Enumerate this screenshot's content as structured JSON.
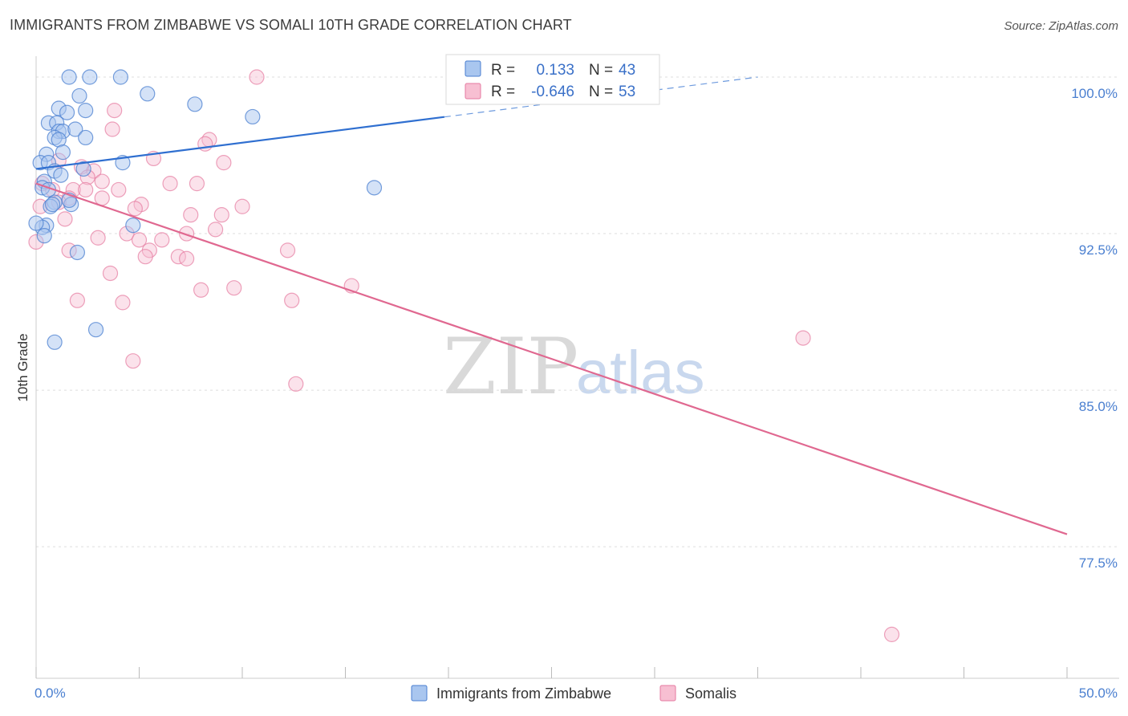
{
  "title": "IMMIGRANTS FROM ZIMBABWE VS SOMALI 10TH GRADE CORRELATION CHART",
  "source": "Source: ZipAtlas.com",
  "watermark": {
    "zip": "ZIP",
    "atlas": "atlas"
  },
  "colors": {
    "zimbabwe_fill": "#a9c6ef",
    "zimbabwe_stroke": "#4a7fd0",
    "zimbabwe_line": "#2f6fd0",
    "somali_fill": "#f7bfd2",
    "somali_stroke": "#e57aa0",
    "somali_line": "#e06890",
    "axis_label": "#4a7fd0"
  },
  "legend": {
    "r_label": "R =",
    "n_label": "N =",
    "zimbabwe": {
      "r": "0.133",
      "n": "43"
    },
    "somali": {
      "r": "-0.646",
      "n": "53"
    }
  },
  "chart_data": {
    "type": "scatter",
    "title": "IMMIGRANTS FROM ZIMBABWE VS SOMALI 10TH GRADE CORRELATION CHART",
    "xlabel": "",
    "ylabel": "10th Grade",
    "xlim": [
      0,
      50
    ],
    "ylim": [
      71.2,
      101.0
    ],
    "x_tick_labels": [
      "0.0%",
      "50.0%"
    ],
    "y_ticks": [
      100.0,
      92.5,
      85.0,
      77.5
    ],
    "y_tick_labels": [
      "100.0%",
      "92.5%",
      "85.0%",
      "77.5%"
    ],
    "grid": true,
    "legend_placement": "bottom-center",
    "series": [
      {
        "name": "Immigrants from Zimbabwe",
        "r": 0.133,
        "n": 43,
        "trend": {
          "x0": 0.0,
          "y0": 95.6,
          "x1": 35.0,
          "y1": 100.0,
          "solid_until": 19.8
        },
        "points": [
          [
            1.6,
            100.0
          ],
          [
            2.6,
            100.0
          ],
          [
            4.1,
            100.0
          ],
          [
            2.1,
            99.1
          ],
          [
            5.4,
            99.2
          ],
          [
            7.7,
            98.7
          ],
          [
            1.1,
            98.5
          ],
          [
            1.5,
            98.3
          ],
          [
            2.4,
            98.4
          ],
          [
            10.5,
            98.1
          ],
          [
            0.6,
            97.8
          ],
          [
            1.0,
            97.8
          ],
          [
            1.1,
            97.4
          ],
          [
            1.3,
            97.4
          ],
          [
            1.9,
            97.5
          ],
          [
            0.9,
            97.1
          ],
          [
            1.1,
            97.0
          ],
          [
            2.4,
            97.1
          ],
          [
            0.5,
            96.3
          ],
          [
            1.3,
            96.4
          ],
          [
            4.2,
            95.9
          ],
          [
            0.2,
            95.9
          ],
          [
            0.6,
            95.9
          ],
          [
            0.9,
            95.5
          ],
          [
            2.3,
            95.6
          ],
          [
            1.2,
            95.3
          ],
          [
            0.4,
            95.0
          ],
          [
            0.3,
            94.7
          ],
          [
            0.6,
            94.6
          ],
          [
            16.4,
            94.7
          ],
          [
            0.9,
            94.0
          ],
          [
            1.7,
            93.9
          ],
          [
            0.7,
            93.8
          ],
          [
            0.8,
            93.9
          ],
          [
            1.6,
            94.1
          ],
          [
            0.5,
            92.9
          ],
          [
            0.3,
            92.8
          ],
          [
            4.7,
            92.9
          ],
          [
            0.4,
            92.4
          ],
          [
            2.0,
            91.6
          ],
          [
            2.9,
            87.9
          ],
          [
            0.9,
            87.3
          ],
          [
            0.0,
            93.0
          ]
        ]
      },
      {
        "name": "Somalis",
        "r": -0.646,
        "n": 53,
        "trend": {
          "x0": 0.0,
          "y0": 94.9,
          "x1": 50.0,
          "y1": 78.1
        },
        "points": [
          [
            10.7,
            100.0
          ],
          [
            3.8,
            98.4
          ],
          [
            3.7,
            97.5
          ],
          [
            8.4,
            97.0
          ],
          [
            8.2,
            96.8
          ],
          [
            5.7,
            96.1
          ],
          [
            9.1,
            95.9
          ],
          [
            1.1,
            96.0
          ],
          [
            2.2,
            95.7
          ],
          [
            2.8,
            95.5
          ],
          [
            3.2,
            95.0
          ],
          [
            6.5,
            94.9
          ],
          [
            7.8,
            94.9
          ],
          [
            2.5,
            95.2
          ],
          [
            0.8,
            94.6
          ],
          [
            1.8,
            94.6
          ],
          [
            2.4,
            94.6
          ],
          [
            4.0,
            94.6
          ],
          [
            1.6,
            94.2
          ],
          [
            3.2,
            94.2
          ],
          [
            1.1,
            94.0
          ],
          [
            5.1,
            93.9
          ],
          [
            4.8,
            93.7
          ],
          [
            10.0,
            93.8
          ],
          [
            7.5,
            93.4
          ],
          [
            9.0,
            93.4
          ],
          [
            1.4,
            93.2
          ],
          [
            8.7,
            92.7
          ],
          [
            4.4,
            92.5
          ],
          [
            7.3,
            92.5
          ],
          [
            3.0,
            92.3
          ],
          [
            5.0,
            92.2
          ],
          [
            6.1,
            92.2
          ],
          [
            0.0,
            92.1
          ],
          [
            1.6,
            91.7
          ],
          [
            5.5,
            91.7
          ],
          [
            5.3,
            91.4
          ],
          [
            6.9,
            91.4
          ],
          [
            7.3,
            91.3
          ],
          [
            12.2,
            91.7
          ],
          [
            3.6,
            90.6
          ],
          [
            15.3,
            90.0
          ],
          [
            8.0,
            89.8
          ],
          [
            9.6,
            89.9
          ],
          [
            2.0,
            89.3
          ],
          [
            4.2,
            89.2
          ],
          [
            12.4,
            89.3
          ],
          [
            4.7,
            86.4
          ],
          [
            12.6,
            85.3
          ],
          [
            37.2,
            87.5
          ],
          [
            41.5,
            73.3
          ],
          [
            0.3,
            94.9
          ],
          [
            0.2,
            93.8
          ]
        ]
      }
    ]
  },
  "bottom_legend": {
    "zimbabwe_label": "Immigrants from Zimbabwe",
    "somali_label": "Somalis"
  }
}
